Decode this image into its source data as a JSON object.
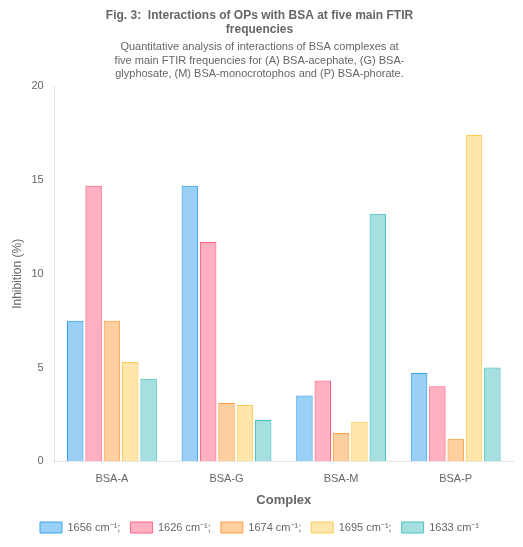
{
  "chart_data": {
    "type": "bar",
    "title": "Fig. 3:  Interactions of OPs with BSA at five main FTIR\nfrequencies",
    "subtitle": "Quantitative analysis of interactions of BSA complexes at\nfive main FTIR frequencies for (A) BSA-acephate, (G) BSA-\nglyphosate, (M) BSA-monocrotophos and (P) BSA-phorate.",
    "x_label": "Complex",
    "y_label": "Inhibition (%)",
    "categories": [
      "BSA-A",
      "BSA-G",
      "BSA-M",
      "BSA-P"
    ],
    "series": [
      {
        "name": "1656 cm⁻¹;",
        "values": [
          7.5,
          14.7,
          3.5,
          4.7
        ]
      },
      {
        "name": "1626 cm⁻¹;",
        "values": [
          14.7,
          11.7,
          4.3,
          4.0
        ]
      },
      {
        "name": "1674 cm⁻¹;",
        "values": [
          7.5,
          3.1,
          1.5,
          1.2
        ]
      },
      {
        "name": "1695 cm⁻¹;",
        "values": [
          5.3,
          3.0,
          2.1,
          17.4
        ]
      },
      {
        "name": "1633 cm⁻¹",
        "values": [
          4.4,
          2.2,
          13.2,
          5.0
        ]
      }
    ],
    "ylim": [
      0,
      20
    ],
    "yticks": [
      0,
      5,
      10,
      15,
      20
    ],
    "grid": false,
    "legend": "bottom"
  }
}
